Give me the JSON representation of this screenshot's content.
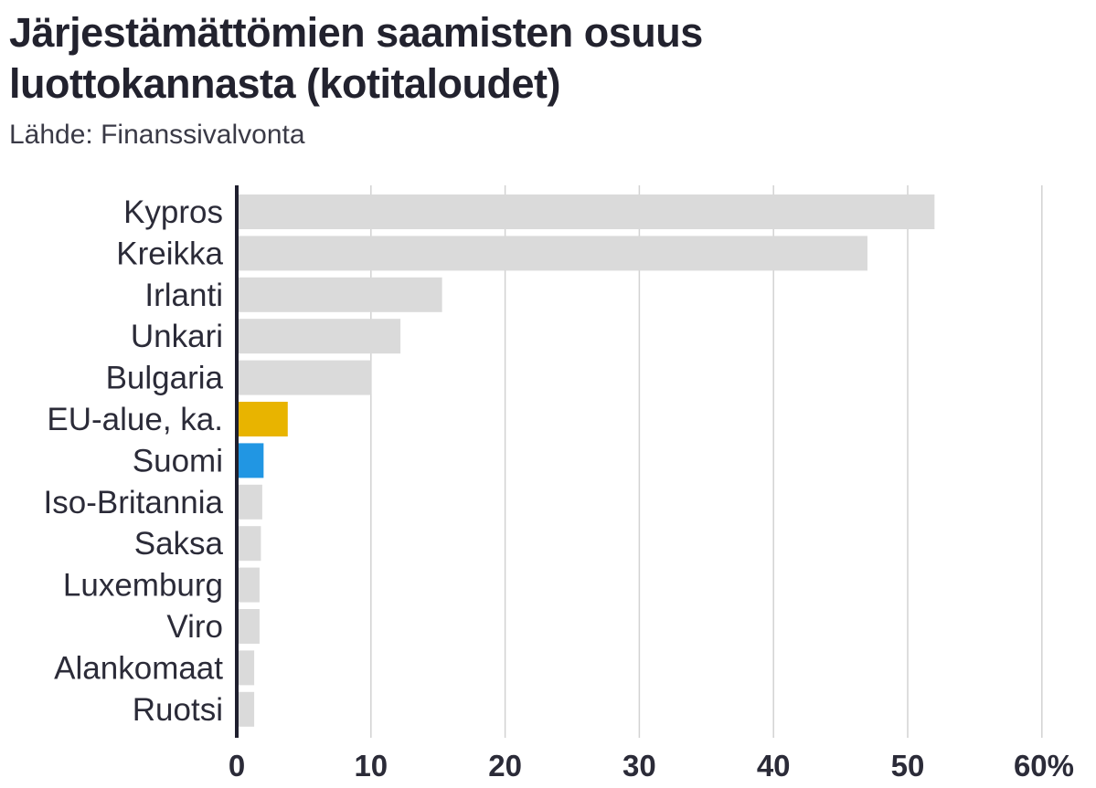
{
  "title_line1": "Järjestämättömien saamisten osuus",
  "title_line2": "luottokannasta (kotitaloudet)",
  "source": "Lähde: Finanssivalvonta",
  "colors": {
    "default_bar": "#dadada",
    "eu_bar": "#e8b400",
    "finland_bar": "#2196e3",
    "gridline": "#d2d2d2",
    "axis": "#1f1f2e",
    "text": "#2b2b38"
  },
  "chart_data": {
    "type": "bar",
    "orientation": "horizontal",
    "title": "Järjestämättömien saamisten osuus luottokannasta (kotitaloudet)",
    "subtitle": "Lähde: Finanssivalvonta",
    "categories": [
      "Kypros",
      "Kreikka",
      "Irlanti",
      "Unkari",
      "Bulgaria",
      "EU-alue, ka.",
      "Suomi",
      "Iso-Britannia",
      "Saksa",
      "Luxemburg",
      "Viro",
      "Alankomaat",
      "Ruotsi"
    ],
    "values": [
      52,
      47,
      15.3,
      12.2,
      10,
      3.8,
      2,
      1.9,
      1.8,
      1.7,
      1.7,
      1.3,
      1.3
    ],
    "highlight": {
      "EU-alue, ka.": "eu_bar",
      "Suomi": "finland_bar"
    },
    "xlim": [
      0,
      60
    ],
    "xticks": [
      0,
      10,
      20,
      30,
      40,
      50,
      60
    ],
    "xtick_labels": [
      "0",
      "10",
      "20",
      "30",
      "40",
      "50",
      "60%"
    ],
    "grid": true,
    "xlabel": "",
    "ylabel": ""
  }
}
